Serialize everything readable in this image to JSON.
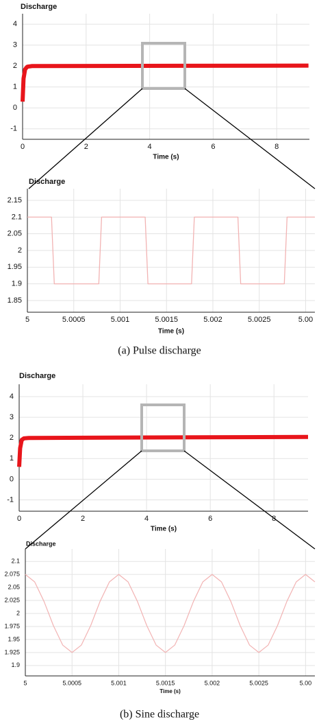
{
  "chart_data": [
    {
      "type": "line",
      "title": "Discharge",
      "x_label": "Time (s)",
      "xlim": [
        0,
        9.03
      ],
      "xticks": [
        0,
        2,
        4,
        6,
        8
      ],
      "ylim": [
        -1.5,
        4.5
      ],
      "yticks": [
        -1,
        0,
        1,
        2,
        3,
        4
      ],
      "grid": true,
      "series": [
        {
          "color": "#e8151b",
          "x": [
            0,
            0.03,
            0.08,
            0.15,
            0.3,
            9
          ],
          "values": [
            0.3,
            1.4,
            1.85,
            1.97,
            2,
            2.02
          ]
        }
      ]
    },
    {
      "type": "line",
      "title": "Discharge",
      "x_label": "Time (s)",
      "xlim": [
        5,
        5.0031
      ],
      "xticks": [
        5,
        5.0005,
        5.001,
        5.0015,
        5.002,
        5.0025,
        {
          "value": 5.003,
          "label": "5.00"
        }
      ],
      "ylim": [
        1.815,
        2.185
      ],
      "yticks": [
        1.85,
        1.9,
        1.95,
        2,
        2.05,
        2.1,
        2.15
      ],
      "grid": true,
      "series": [
        {
          "color": "#f2b3b3",
          "x": [
            5,
            5.00026,
            5.00029,
            5.00077,
            5.0008,
            5.00127,
            5.0013,
            5.00177,
            5.0018,
            5.00227,
            5.0023,
            5.00277,
            5.0028,
            5.0031
          ],
          "values": [
            2.1,
            2.1,
            1.9,
            1.9,
            2.1,
            2.1,
            1.9,
            1.9,
            2.1,
            2.1,
            1.9,
            1.9,
            2.1,
            2.1
          ]
        }
      ]
    },
    {
      "type": "line",
      "title": "Discharge",
      "x_label": "Time (s)",
      "xlim": [
        0,
        9.07
      ],
      "xticks": [
        0,
        2,
        4,
        6,
        8
      ],
      "ylim": [
        -1.55,
        4.6
      ],
      "yticks": [
        -1,
        0,
        1,
        2,
        3,
        4
      ],
      "grid": true,
      "series": [
        {
          "color": "#e8151b",
          "x": [
            0,
            0.03,
            0.08,
            0.15,
            0.3,
            9.07
          ],
          "values": [
            0.6,
            1.5,
            1.9,
            1.98,
            2,
            2.05
          ]
        }
      ]
    },
    {
      "type": "line",
      "title": "Discharge",
      "x_label": "Time (s)",
      "xlim": [
        5,
        5.0031
      ],
      "xticks": [
        5,
        5.0005,
        5.001,
        5.0015,
        5.002,
        5.0025,
        {
          "value": 5.003,
          "label": "5.00"
        }
      ],
      "ylim": [
        1.88,
        2.124
      ],
      "yticks": [
        1.9,
        1.925,
        1.95,
        1.975,
        2,
        2.025,
        2.05,
        2.075,
        2.1
      ],
      "grid": true,
      "series": [
        {
          "color": "#f2b3b3",
          "x": [
            5,
            5.0001,
            5.0002,
            5.0003,
            5.0004,
            5.0005,
            5.0006,
            5.0007,
            5.0008,
            5.0009,
            5.001,
            5.0011,
            5.0012,
            5.0013,
            5.0014,
            5.0015,
            5.0016,
            5.0017,
            5.0018,
            5.0019,
            5.002,
            5.0021,
            5.0022,
            5.0023,
            5.0024,
            5.0025,
            5.0026,
            5.0027,
            5.0028,
            5.0029,
            5.003,
            5.0031
          ],
          "values": [
            2.075,
            2.0607,
            2.0232,
            1.9768,
            1.9393,
            1.925,
            1.9393,
            1.9768,
            2.0232,
            2.0607,
            2.075,
            2.0607,
            2.0232,
            1.9768,
            1.9393,
            1.925,
            1.9393,
            1.9768,
            2.0232,
            2.0607,
            2.075,
            2.0607,
            2.0232,
            1.9768,
            1.9393,
            1.925,
            1.9393,
            1.9768,
            2.0232,
            2.0607,
            2.075,
            2.0607
          ]
        }
      ]
    }
  ],
  "captions": [
    "(a) Pulse discharge",
    "(b) Sine discharge"
  ]
}
